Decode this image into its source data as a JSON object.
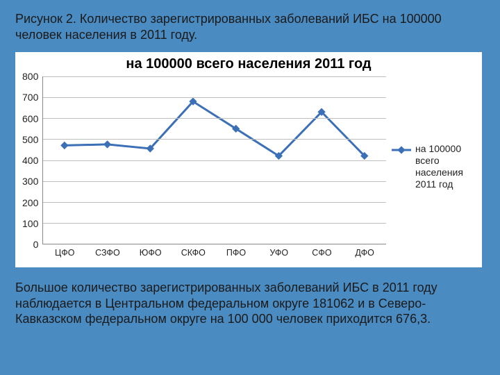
{
  "slide": {
    "background_color": "#4a8bc2",
    "caption_top": "Рисунок 2. Количество зарегистрированных заболеваний ИБС на 100000 человек населения в 2011 году.",
    "caption_bottom": "Большое количество зарегистрированных заболеваний ИБС в 2011 году  наблюдается в Центральном федеральном округе  181062 и в Северо-Кавказском федеральном округе на 100 000 человек приходится 676,3.",
    "caption_fontsize": 18,
    "caption_color": "#1a1a1a"
  },
  "chart": {
    "type": "line",
    "title": "на 100000 всего населения 2011 год",
    "title_fontsize": 20,
    "title_color": "#000000",
    "background_color": "#ffffff",
    "grid_color": "#bfbfbf",
    "axis_color": "#888888",
    "series_color": "#3b6fb6",
    "marker": "diamond",
    "marker_size": 8,
    "line_width": 3,
    "legend_label": "на 100000 всего населения 2011 год",
    "ylim": [
      0,
      800
    ],
    "ytick_step": 100,
    "yticks": [
      "800",
      "700",
      "600",
      "500",
      "400",
      "300",
      "200",
      "100",
      "0"
    ],
    "categories": [
      "ЦФО",
      "СЗФО",
      "ЮФО",
      "СКФО",
      "ПФО",
      "УФО",
      "СФО",
      "ДФО"
    ],
    "values": [
      470,
      475,
      455,
      680,
      550,
      420,
      630,
      420
    ],
    "label_fontsize": 14
  }
}
